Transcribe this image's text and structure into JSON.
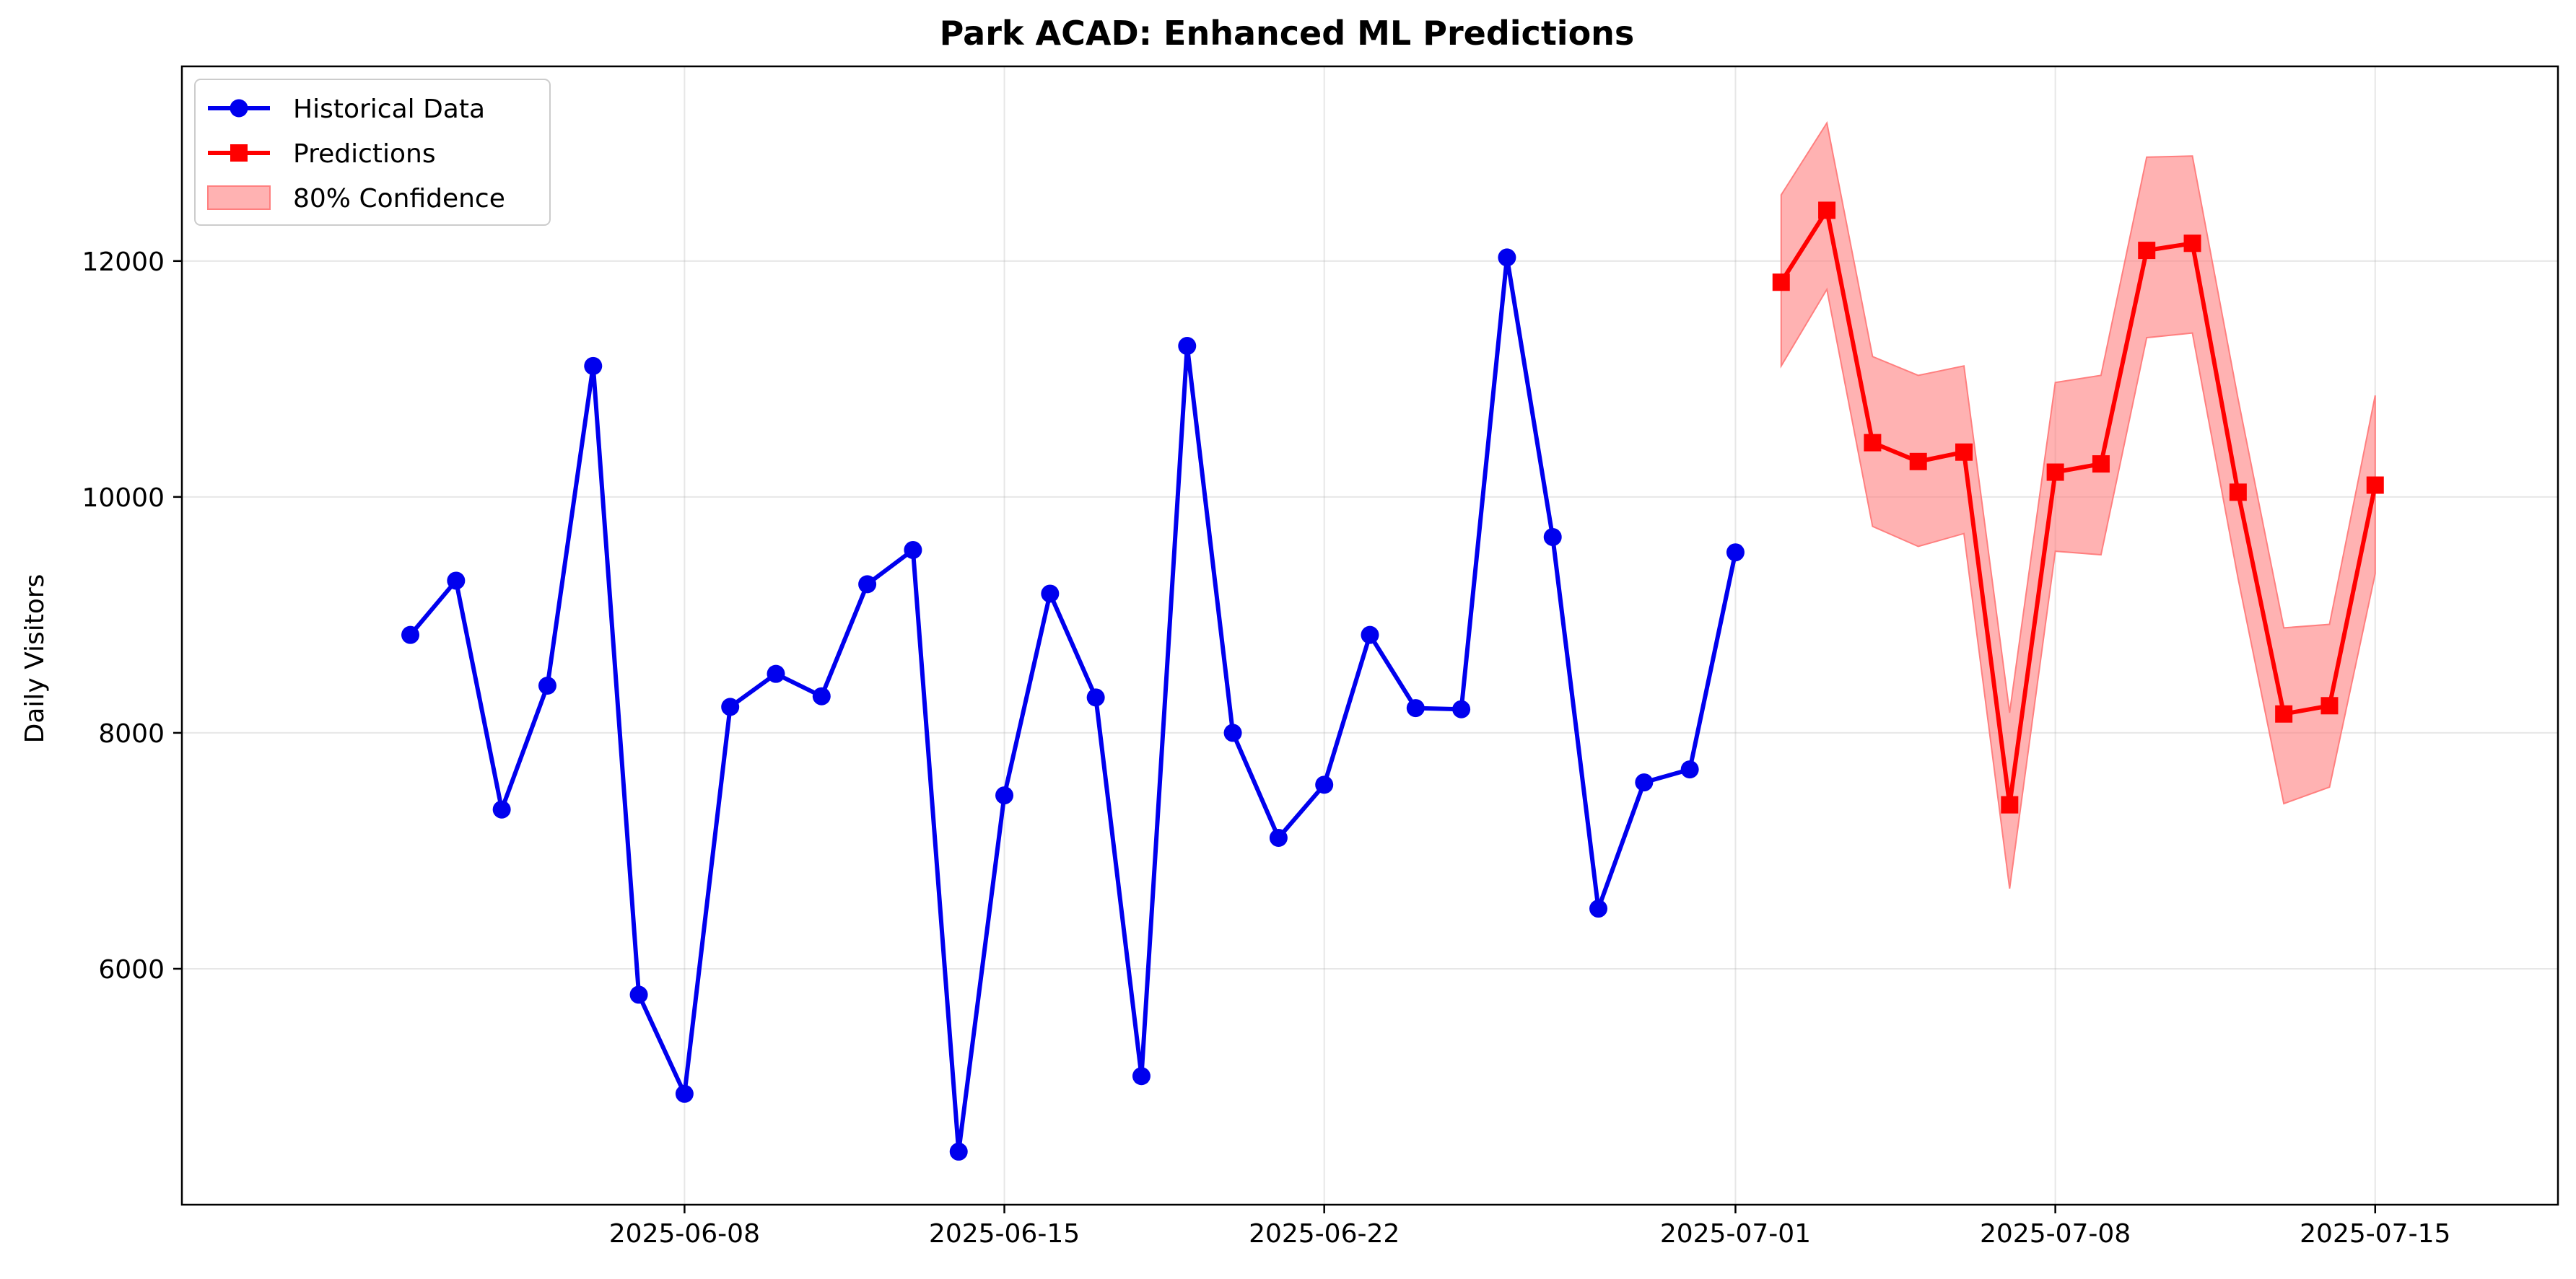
{
  "chart_data": {
    "type": "line",
    "title": "Park ACAD: Enhanced ML Predictions",
    "xlabel": "",
    "ylabel": "Daily Visitors",
    "x_axis": {
      "type": "date",
      "ticks": [
        "2025-06-08",
        "2025-06-15",
        "2025-06-22",
        "2025-07-01",
        "2025-07-08",
        "2025-07-15"
      ]
    },
    "y_axis": {
      "ticks": [
        6000,
        8000,
        10000,
        12000
      ],
      "ylim": [
        4000,
        13650
      ]
    },
    "grid": true,
    "legend_position": "top-left",
    "series": [
      {
        "name": "Historical Data",
        "color": "#0000ee",
        "marker": "circle",
        "points": [
          {
            "x": "2025-06-02",
            "y": 8830
          },
          {
            "x": "2025-06-03",
            "y": 9290
          },
          {
            "x": "2025-06-04",
            "y": 7350
          },
          {
            "x": "2025-06-05",
            "y": 8400
          },
          {
            "x": "2025-06-06",
            "y": 11110
          },
          {
            "x": "2025-06-07",
            "y": 5780
          },
          {
            "x": "2025-06-08",
            "y": 4940
          },
          {
            "x": "2025-06-09",
            "y": 8220
          },
          {
            "x": "2025-06-10",
            "y": 8500
          },
          {
            "x": "2025-06-11",
            "y": 8310
          },
          {
            "x": "2025-06-12",
            "y": 9260
          },
          {
            "x": "2025-06-13",
            "y": 9550
          },
          {
            "x": "2025-06-14",
            "y": 4450
          },
          {
            "x": "2025-06-15",
            "y": 7470
          },
          {
            "x": "2025-06-16",
            "y": 9180
          },
          {
            "x": "2025-06-17",
            "y": 8300
          },
          {
            "x": "2025-06-18",
            "y": 5090
          },
          {
            "x": "2025-06-19",
            "y": 11280
          },
          {
            "x": "2025-06-20",
            "y": 8000
          },
          {
            "x": "2025-06-21",
            "y": 7110
          },
          {
            "x": "2025-06-22",
            "y": 7560
          },
          {
            "x": "2025-06-23",
            "y": 8830
          },
          {
            "x": "2025-06-24",
            "y": 8210
          },
          {
            "x": "2025-06-25",
            "y": 8200
          },
          {
            "x": "2025-06-26",
            "y": 12030
          },
          {
            "x": "2025-06-27",
            "y": 9660
          },
          {
            "x": "2025-06-28",
            "y": 6510
          },
          {
            "x": "2025-06-29",
            "y": 7580
          },
          {
            "x": "2025-06-30",
            "y": 7690
          },
          {
            "x": "2025-07-01",
            "y": 9530
          }
        ]
      },
      {
        "name": "Predictions",
        "color": "#ff0000",
        "marker": "square",
        "points": [
          {
            "x": "2025-07-02",
            "y": 11820
          },
          {
            "x": "2025-07-03",
            "y": 12430
          },
          {
            "x": "2025-07-04",
            "y": 10460
          },
          {
            "x": "2025-07-05",
            "y": 10300
          },
          {
            "x": "2025-07-06",
            "y": 10380
          },
          {
            "x": "2025-07-07",
            "y": 7390
          },
          {
            "x": "2025-07-08",
            "y": 10210
          },
          {
            "x": "2025-07-09",
            "y": 10280
          },
          {
            "x": "2025-07-10",
            "y": 12090
          },
          {
            "x": "2025-07-11",
            "y": 12150
          },
          {
            "x": "2025-07-12",
            "y": 10040
          },
          {
            "x": "2025-07-13",
            "y": 8160
          },
          {
            "x": "2025-07-14",
            "y": 8230
          },
          {
            "x": "2025-07-15",
            "y": 10100
          }
        ]
      }
    ],
    "confidence_band": {
      "name": "80% Confidence",
      "color": "#ff7f7f",
      "x": [
        "2025-07-02",
        "2025-07-03",
        "2025-07-04",
        "2025-07-05",
        "2025-07-06",
        "2025-07-07",
        "2025-07-08",
        "2025-07-09",
        "2025-07-10",
        "2025-07-11",
        "2025-07-12",
        "2025-07-13",
        "2025-07-14",
        "2025-07-15"
      ],
      "lower": [
        11110,
        11760,
        9750,
        9580,
        9690,
        6680,
        9540,
        9510,
        11350,
        11390,
        9310,
        7400,
        7540,
        9350
      ],
      "upper": [
        12560,
        13170,
        11190,
        11030,
        11110,
        8170,
        10970,
        11030,
        12880,
        12890,
        10830,
        8890,
        8920,
        10860
      ]
    }
  }
}
